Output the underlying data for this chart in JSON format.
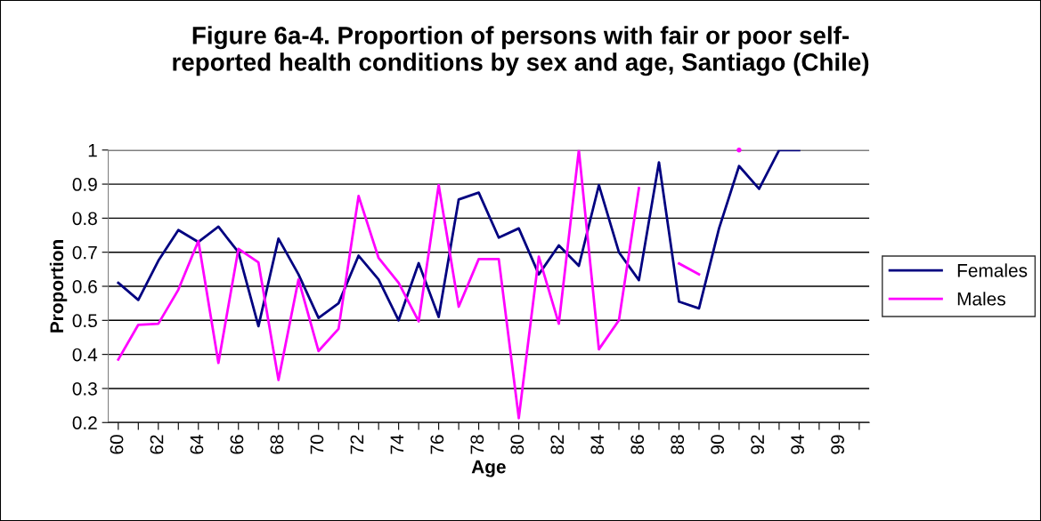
{
  "chart_data": {
    "type": "line",
    "title": "Figure 6a-4. Proportion of persons with fair or poor self-\nreported health conditions by sex and age, Santiago (Chile)",
    "xlabel": "Age",
    "ylabel": "Proportion",
    "categories": [
      "60",
      null,
      "62",
      null,
      "64",
      null,
      "66",
      null,
      "68",
      null,
      "70",
      null,
      "72",
      null,
      "74",
      null,
      "76",
      null,
      "78",
      null,
      "80",
      null,
      "82",
      null,
      "84",
      null,
      "86",
      null,
      "88",
      null,
      "90",
      null,
      "92",
      null,
      "94",
      null,
      "99",
      null
    ],
    "series": [
      {
        "name": "Females",
        "color": "#000080",
        "values": [
          0.61,
          0.56,
          0.675,
          0.765,
          0.73,
          0.775,
          0.7,
          0.483,
          0.74,
          0.635,
          0.507,
          0.55,
          0.69,
          0.62,
          0.5,
          0.668,
          0.51,
          0.855,
          0.875,
          0.743,
          0.77,
          0.635,
          0.72,
          0.66,
          0.897,
          0.7,
          0.618,
          0.964,
          0.555,
          0.535,
          0.77,
          0.953,
          0.886,
          1.0,
          1.0,
          null,
          null,
          null
        ]
      },
      {
        "name": "Males",
        "color": "#ff00ff",
        "values": [
          0.385,
          0.487,
          0.49,
          0.59,
          0.733,
          0.375,
          0.71,
          0.67,
          0.325,
          0.62,
          0.41,
          0.475,
          0.865,
          0.683,
          0.61,
          0.497,
          0.897,
          0.54,
          0.68,
          0.68,
          0.213,
          0.687,
          0.49,
          1.0,
          0.415,
          0.5,
          0.888,
          null,
          0.667,
          0.635,
          null,
          1.0,
          null,
          null,
          null,
          null,
          null,
          null
        ]
      }
    ],
    "ylim": [
      0.2,
      1
    ],
    "yticks": [
      0.2,
      0.3,
      0.4,
      0.5,
      0.6,
      0.7,
      0.8,
      0.9,
      1
    ],
    "grid": "y",
    "legend": "right",
    "marker": "none",
    "line_style": "solid"
  }
}
